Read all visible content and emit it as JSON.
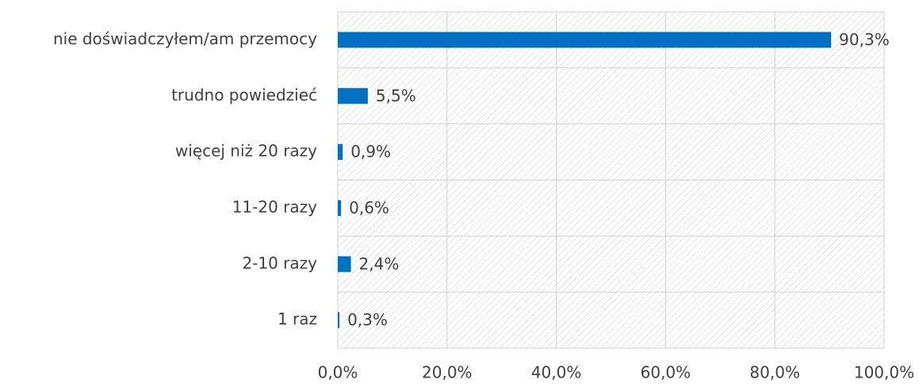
{
  "chart_data": {
    "type": "barh",
    "categories": [
      "nie doświadczyłem/am przemocy",
      "trudno powiedzieć",
      "więcej niż 20 razy",
      "11-20 razy",
      "2-10 razy",
      "1 raz"
    ],
    "values": [
      90.3,
      5.5,
      0.9,
      0.6,
      2.4,
      0.3
    ],
    "value_labels": [
      "90,3%",
      "5,5%",
      "0,9%",
      "0,6%",
      "2,4%",
      "0,3%"
    ],
    "color": "#0070c0",
    "xlim": [
      0,
      100
    ],
    "xticks": [
      {
        "value": 0,
        "label": "0,0%"
      },
      {
        "value": 20,
        "label": "20,0%"
      },
      {
        "value": 40,
        "label": "40,0%"
      },
      {
        "value": 60,
        "label": "60,0%"
      },
      {
        "value": 80,
        "label": "80,0%"
      },
      {
        "value": 100,
        "label": "100,0%"
      }
    ],
    "grid": true
  }
}
